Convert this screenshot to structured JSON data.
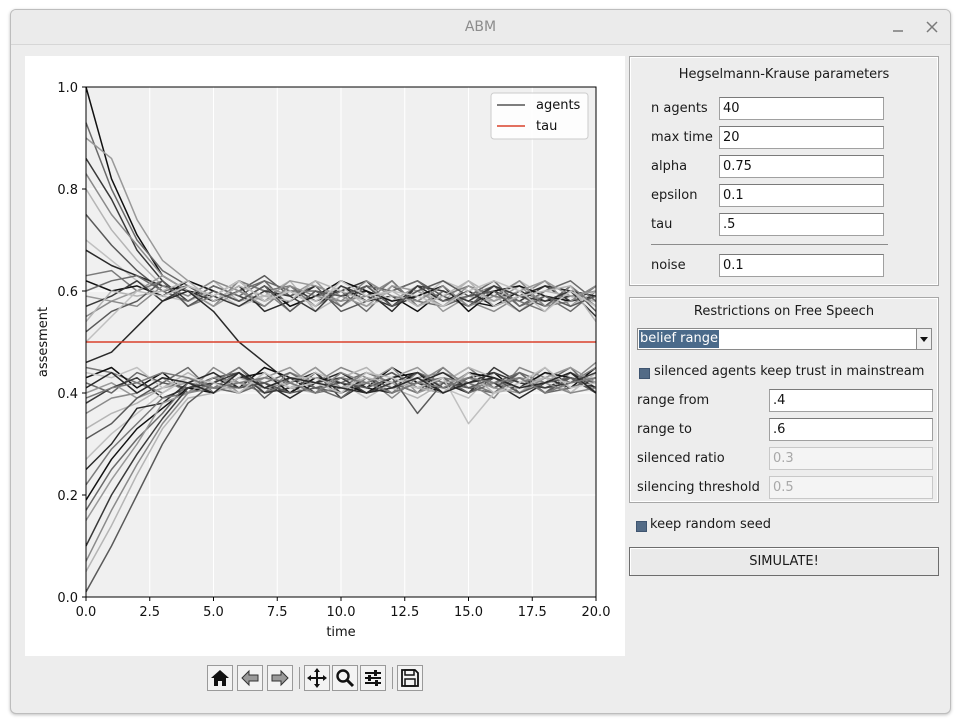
{
  "window": {
    "title": "ABM"
  },
  "chart_data": {
    "type": "line",
    "xlabel": "time",
    "ylabel": "assesment",
    "xlim": [
      0,
      20
    ],
    "ylim": [
      0,
      1
    ],
    "xticks": [
      "0.0",
      "2.5",
      "5.0",
      "7.5",
      "10.0",
      "12.5",
      "15.0",
      "17.5",
      "20.0"
    ],
    "yticks": [
      "0.0",
      "0.2",
      "0.4",
      "0.6",
      "0.8",
      "1.0"
    ],
    "grid": true,
    "legend_position": "top-right",
    "legend": [
      "agents",
      "tau"
    ],
    "x": [
      0,
      1,
      2,
      3,
      4,
      5,
      6,
      7,
      8,
      9,
      10,
      11,
      12,
      13,
      14,
      15,
      16,
      17,
      18,
      19,
      20
    ],
    "tau": 0.5,
    "colors": {
      "tau": "#d9412b",
      "agents": "#555555"
    },
    "series": [
      {
        "values": [
          1.0,
          0.82,
          0.71,
          0.63,
          0.6,
          0.59,
          0.62,
          0.58,
          0.6,
          0.57,
          0.61,
          0.58,
          0.59,
          0.56,
          0.6,
          0.58,
          0.57,
          0.6,
          0.58,
          0.59,
          0.58
        ]
      },
      {
        "values": [
          0.93,
          0.8,
          0.7,
          0.64,
          0.61,
          0.58,
          0.6,
          0.62,
          0.57,
          0.59,
          0.6,
          0.56,
          0.61,
          0.58,
          0.57,
          0.59,
          0.61,
          0.57,
          0.59,
          0.56,
          0.6
        ]
      },
      {
        "values": [
          0.9,
          0.86,
          0.74,
          0.66,
          0.62,
          0.6,
          0.58,
          0.61,
          0.59,
          0.62,
          0.57,
          0.6,
          0.58,
          0.61,
          0.56,
          0.59,
          0.58,
          0.61,
          0.57,
          0.6,
          0.57
        ]
      },
      {
        "values": [
          0.86,
          0.78,
          0.68,
          0.62,
          0.58,
          0.61,
          0.59,
          0.57,
          0.61,
          0.58,
          0.6,
          0.62,
          0.57,
          0.59,
          0.61,
          0.57,
          0.6,
          0.58,
          0.61,
          0.58,
          0.59
        ]
      },
      {
        "values": [
          0.83,
          0.75,
          0.69,
          0.63,
          0.6,
          0.57,
          0.62,
          0.6,
          0.56,
          0.6,
          0.58,
          0.59,
          0.62,
          0.57,
          0.6,
          0.58,
          0.56,
          0.59,
          0.62,
          0.57,
          0.61
        ]
      },
      {
        "values": [
          0.8,
          0.72,
          0.66,
          0.61,
          0.59,
          0.62,
          0.58,
          0.59,
          0.62,
          0.56,
          0.59,
          0.61,
          0.58,
          0.6,
          0.58,
          0.62,
          0.59,
          0.56,
          0.6,
          0.59,
          0.58
        ]
      },
      {
        "values": [
          0.75,
          0.69,
          0.64,
          0.6,
          0.61,
          0.58,
          0.6,
          0.63,
          0.59,
          0.61,
          0.56,
          0.58,
          0.6,
          0.62,
          0.59,
          0.57,
          0.61,
          0.59,
          0.57,
          0.61,
          0.56
        ]
      },
      {
        "values": [
          0.7,
          0.66,
          0.62,
          0.59,
          0.58,
          0.6,
          0.57,
          0.59,
          0.6,
          0.58,
          0.61,
          0.57,
          0.59,
          0.58,
          0.62,
          0.6,
          0.58,
          0.62,
          0.59,
          0.57,
          0.6
        ]
      },
      {
        "values": [
          0.68,
          0.65,
          0.63,
          0.61,
          0.6,
          0.58,
          0.61,
          0.56,
          0.58,
          0.61,
          0.59,
          0.6,
          0.56,
          0.61,
          0.58,
          0.6,
          0.57,
          0.59,
          0.61,
          0.6,
          0.59
        ]
      },
      {
        "values": [
          0.63,
          0.64,
          0.6,
          0.62,
          0.57,
          0.59,
          0.62,
          0.6,
          0.61,
          0.57,
          0.6,
          0.58,
          0.62,
          0.57,
          0.59,
          0.61,
          0.59,
          0.58,
          0.56,
          0.61,
          0.57
        ]
      },
      {
        "values": [
          0.62,
          0.6,
          0.61,
          0.59,
          0.62,
          0.6,
          0.58,
          0.61,
          0.57,
          0.59,
          0.62,
          0.6,
          0.58,
          0.59,
          0.61,
          0.56,
          0.6,
          0.61,
          0.59,
          0.58,
          0.61
        ]
      },
      {
        "values": [
          0.6,
          0.62,
          0.63,
          0.6,
          0.58,
          0.61,
          0.59,
          0.62,
          0.6,
          0.6,
          0.57,
          0.61,
          0.6,
          0.62,
          0.58,
          0.59,
          0.62,
          0.57,
          0.6,
          0.62,
          0.58
        ]
      },
      {
        "values": [
          0.59,
          0.58,
          0.6,
          0.63,
          0.6,
          0.57,
          0.6,
          0.58,
          0.62,
          0.61,
          0.59,
          0.57,
          0.61,
          0.6,
          0.57,
          0.61,
          0.58,
          0.6,
          0.62,
          0.59,
          0.6
        ]
      },
      {
        "values": [
          0.57,
          0.59,
          0.62,
          0.58,
          0.61,
          0.59,
          0.57,
          0.6,
          0.59,
          0.56,
          0.61,
          0.59,
          0.57,
          0.61,
          0.6,
          0.58,
          0.61,
          0.59,
          0.58,
          0.6,
          0.55
        ]
      },
      {
        "values": [
          0.55,
          0.58,
          0.57,
          0.61,
          0.59,
          0.62,
          0.6,
          0.57,
          0.61,
          0.59,
          0.58,
          0.62,
          0.59,
          0.58,
          0.61,
          0.57,
          0.59,
          0.62,
          0.57,
          0.58,
          0.61
        ]
      },
      {
        "values": [
          0.54,
          0.6,
          0.59,
          0.6,
          0.62,
          0.58,
          0.61,
          0.59,
          0.58,
          0.62,
          0.6,
          0.58,
          0.6,
          0.57,
          0.59,
          0.62,
          0.57,
          0.59,
          0.6,
          0.61,
          0.54
        ]
      },
      {
        "values": [
          0.52,
          0.56,
          0.58,
          0.62,
          0.57,
          0.6,
          0.58,
          0.61,
          0.56,
          0.6,
          0.59,
          0.61,
          0.57,
          0.6,
          0.62,
          0.59,
          0.6,
          0.56,
          0.59,
          0.57,
          0.59
        ]
      },
      {
        "values": [
          0.5,
          0.55,
          0.6,
          0.59,
          0.61,
          0.59,
          0.62,
          0.58,
          0.6,
          0.57,
          0.62,
          0.59,
          0.6,
          0.59,
          0.57,
          0.6,
          0.62,
          0.6,
          0.56,
          0.6,
          0.57
        ]
      },
      {
        "values": [
          0.46,
          0.48,
          0.53,
          0.58,
          0.6,
          0.56,
          0.5,
          0.46,
          0.42,
          0.44,
          0.4,
          0.43,
          0.41,
          0.44,
          0.42,
          0.4,
          0.43,
          0.41,
          0.44,
          0.42,
          0.43
        ]
      },
      {
        "values": [
          0.45,
          0.44,
          0.42,
          0.4,
          0.43,
          0.41,
          0.44,
          0.4,
          0.42,
          0.45,
          0.41,
          0.43,
          0.4,
          0.44,
          0.42,
          0.45,
          0.41,
          0.43,
          0.4,
          0.44,
          0.42
        ]
      },
      {
        "values": [
          0.43,
          0.45,
          0.41,
          0.44,
          0.4,
          0.43,
          0.41,
          0.45,
          0.43,
          0.4,
          0.44,
          0.41,
          0.45,
          0.42,
          0.4,
          0.43,
          0.44,
          0.4,
          0.43,
          0.41,
          0.45
        ]
      },
      {
        "values": [
          0.42,
          0.4,
          0.44,
          0.42,
          0.45,
          0.4,
          0.43,
          0.42,
          0.4,
          0.43,
          0.42,
          0.44,
          0.42,
          0.4,
          0.45,
          0.41,
          0.4,
          0.44,
          0.42,
          0.45,
          0.4
        ]
      },
      {
        "values": [
          0.4,
          0.42,
          0.39,
          0.41,
          0.42,
          0.44,
          0.4,
          0.43,
          0.45,
          0.41,
          0.43,
          0.4,
          0.43,
          0.45,
          0.41,
          0.44,
          0.42,
          0.41,
          0.45,
          0.4,
          0.44
        ]
      },
      {
        "values": [
          0.38,
          0.41,
          0.43,
          0.39,
          0.41,
          0.42,
          0.45,
          0.41,
          0.4,
          0.44,
          0.39,
          0.42,
          0.44,
          0.41,
          0.43,
          0.4,
          0.45,
          0.42,
          0.41,
          0.43,
          0.41
        ]
      },
      {
        "values": [
          0.36,
          0.39,
          0.4,
          0.43,
          0.4,
          0.45,
          0.42,
          0.4,
          0.44,
          0.42,
          0.45,
          0.43,
          0.39,
          0.43,
          0.44,
          0.42,
          0.39,
          0.45,
          0.43,
          0.42,
          0.46
        ]
      },
      {
        "values": [
          0.33,
          0.36,
          0.38,
          0.41,
          0.44,
          0.41,
          0.4,
          0.44,
          0.41,
          0.4,
          0.43,
          0.45,
          0.41,
          0.39,
          0.42,
          0.45,
          0.43,
          0.4,
          0.44,
          0.41,
          0.43
        ]
      },
      {
        "values": [
          0.31,
          0.34,
          0.39,
          0.42,
          0.41,
          0.43,
          0.44,
          0.39,
          0.43,
          0.41,
          0.4,
          0.42,
          0.44,
          0.41,
          0.4,
          0.43,
          0.41,
          0.44,
          0.4,
          0.43,
          0.42
        ]
      },
      {
        "values": [
          0.27,
          0.32,
          0.36,
          0.4,
          0.43,
          0.4,
          0.42,
          0.43,
          0.41,
          0.44,
          0.42,
          0.39,
          0.42,
          0.43,
          0.41,
          0.39,
          0.44,
          0.42,
          0.43,
          0.4,
          0.44
        ]
      },
      {
        "values": [
          0.25,
          0.3,
          0.37,
          0.38,
          0.42,
          0.44,
          0.41,
          0.42,
          0.39,
          0.42,
          0.44,
          0.41,
          0.4,
          0.42,
          0.44,
          0.41,
          0.42,
          0.39,
          0.42,
          0.44,
          0.41
        ]
      },
      {
        "values": [
          0.22,
          0.29,
          0.34,
          0.39,
          0.4,
          0.42,
          0.45,
          0.4,
          0.42,
          0.4,
          0.41,
          0.44,
          0.42,
          0.4,
          0.43,
          0.42,
          0.4,
          0.43,
          0.41,
          0.42,
          0.45
        ]
      },
      {
        "values": [
          0.19,
          0.27,
          0.33,
          0.37,
          0.41,
          0.4,
          0.43,
          0.44,
          0.4,
          0.43,
          0.42,
          0.4,
          0.43,
          0.44,
          0.4,
          0.44,
          0.43,
          0.41,
          0.44,
          0.43,
          0.4
        ]
      },
      {
        "values": [
          0.17,
          0.25,
          0.31,
          0.36,
          0.42,
          0.41,
          0.4,
          0.42,
          0.44,
          0.41,
          0.39,
          0.43,
          0.41,
          0.42,
          0.43,
          0.4,
          0.42,
          0.44,
          0.4,
          0.41,
          0.43
        ]
      },
      {
        "values": [
          0.15,
          0.23,
          0.3,
          0.38,
          0.4,
          0.43,
          0.42,
          0.41,
          0.42,
          0.45,
          0.41,
          0.42,
          0.45,
          0.4,
          0.42,
          0.43,
          0.41,
          0.4,
          0.43,
          0.45,
          0.42
        ]
      },
      {
        "values": [
          0.1,
          0.2,
          0.28,
          0.35,
          0.41,
          0.42,
          0.44,
          0.4,
          0.41,
          0.42,
          0.43,
          0.4,
          0.42,
          0.44,
          0.41,
          0.42,
          0.44,
          0.42,
          0.41,
          0.42,
          0.44
        ]
      },
      {
        "values": [
          0.07,
          0.17,
          0.26,
          0.34,
          0.4,
          0.41,
          0.41,
          0.43,
          0.42,
          0.4,
          0.44,
          0.42,
          0.4,
          0.42,
          0.45,
          0.41,
          0.42,
          0.43,
          0.42,
          0.4,
          0.41
        ]
      },
      {
        "values": [
          0.05,
          0.14,
          0.24,
          0.33,
          0.39,
          0.4,
          0.43,
          0.41,
          0.43,
          0.43,
          0.41,
          0.43,
          0.42,
          0.41,
          0.4,
          0.44,
          0.4,
          0.41,
          0.43,
          0.42,
          0.43
        ]
      },
      {
        "values": [
          0.01,
          0.1,
          0.2,
          0.3,
          0.38,
          0.42,
          0.41,
          0.42,
          0.4,
          0.41,
          0.42,
          0.41,
          0.43,
          0.36,
          0.42,
          0.41,
          0.43,
          0.4,
          0.42,
          0.43,
          0.4
        ]
      },
      {
        "values": [
          0.44,
          0.43,
          0.45,
          0.41,
          0.43,
          0.42,
          0.4,
          0.44,
          0.41,
          0.42,
          0.4,
          0.44,
          0.43,
          0.41,
          0.43,
          0.34,
          0.4,
          0.42,
          0.45,
          0.41,
          0.42
        ]
      },
      {
        "values": [
          0.41,
          0.44,
          0.4,
          0.43,
          0.42,
          0.4,
          0.44,
          0.41,
          0.43,
          0.42,
          0.41,
          0.4,
          0.41,
          0.43,
          0.4,
          0.42,
          0.43,
          0.41,
          0.42,
          0.44,
          0.4
        ]
      },
      {
        "values": [
          0.39,
          0.41,
          0.42,
          0.44,
          0.43,
          0.41,
          0.42,
          0.43,
          0.42,
          0.4,
          0.43,
          0.42,
          0.4,
          0.42,
          0.41,
          0.43,
          0.42,
          0.43,
          0.4,
          0.42,
          0.43
        ]
      }
    ]
  },
  "toolbar": {
    "buttons": [
      {
        "name": "home-icon"
      },
      {
        "name": "back-arrow-icon"
      },
      {
        "name": "forward-arrow-icon"
      },
      {
        "name": "pan-move-icon"
      },
      {
        "name": "zoom-magnifier-icon"
      },
      {
        "name": "subplots-sliders-icon"
      },
      {
        "name": "save-floppy-icon"
      }
    ]
  },
  "hk": {
    "title": "Hegselmann-Krause parameters",
    "params": [
      {
        "label": "n agents",
        "value": "40"
      },
      {
        "label": "max time",
        "value": "20"
      },
      {
        "label": "alpha",
        "value": "0.75"
      },
      {
        "label": "epsilon",
        "value": "0.1"
      },
      {
        "label": "tau",
        "value": ".5"
      }
    ],
    "noise": {
      "label": "noise",
      "value": "0.1"
    }
  },
  "restrictions": {
    "title": "Restrictions on Free Speech",
    "mode": "belief range",
    "trust_checkbox": {
      "label": "silenced agents keep trust in mainstream",
      "checked": true
    },
    "fields": [
      {
        "label": "range from",
        "value": ".4",
        "enabled": true
      },
      {
        "label": "range to",
        "value": ".6",
        "enabled": true
      },
      {
        "label": "silenced ratio",
        "value": "0.3",
        "enabled": false
      },
      {
        "label": "silencing threshold",
        "value": "0.5",
        "enabled": false
      }
    ]
  },
  "seed_checkbox": {
    "label": "keep random seed",
    "checked": true
  },
  "simulate_label": "SIMULATE!"
}
